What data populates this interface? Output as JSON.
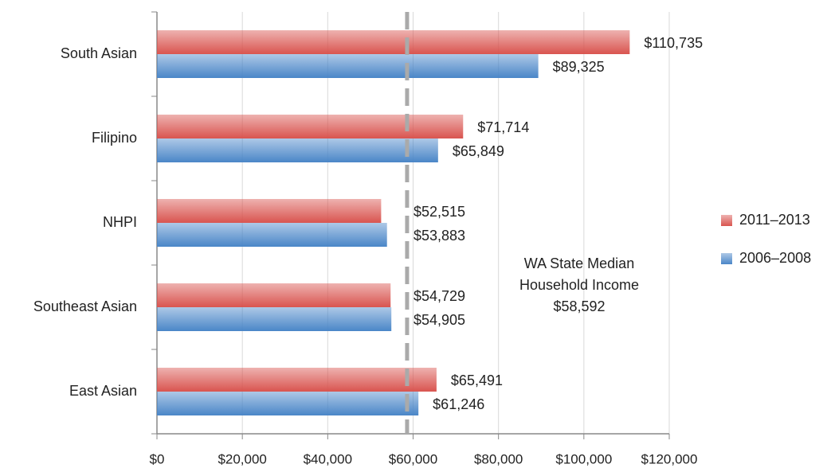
{
  "chart_data": {
    "type": "bar",
    "orientation": "horizontal",
    "categories": [
      "South Asian",
      "Filipino",
      "NHPI",
      "Southeast Asian",
      "East Asian"
    ],
    "series": [
      {
        "name": "2011–2013",
        "color": "#d9544f",
        "values": [
          110735,
          71714,
          52515,
          54729,
          65491
        ],
        "value_labels": [
          "$110,735",
          "$71,714",
          "$52,515",
          "$54,729",
          "$65,491"
        ]
      },
      {
        "name": "2006–2008",
        "color": "#4a86c8",
        "values": [
          89325,
          65849,
          53883,
          54905,
          61246
        ],
        "value_labels": [
          "$89,325",
          "$65,849",
          "$53,883",
          "$54,905",
          "$61,246"
        ]
      }
    ],
    "xlim": [
      0,
      120000
    ],
    "xticks": [
      {
        "value": 0,
        "label": "$0"
      },
      {
        "value": 20000,
        "label": "$20,000"
      },
      {
        "value": 40000,
        "label": "$40,000"
      },
      {
        "value": 60000,
        "label": "$60,000"
      },
      {
        "value": 80000,
        "label": "$80,000"
      },
      {
        "value": 100000,
        "label": "$100,000"
      },
      {
        "value": 120000,
        "label": "$120,000"
      }
    ],
    "grid": true,
    "legend": "right",
    "reference_line": {
      "value": 58592,
      "label": "$58,592",
      "color": "#aaaaaa"
    },
    "annotation": [
      "WA State Median",
      "Household Income"
    ]
  }
}
